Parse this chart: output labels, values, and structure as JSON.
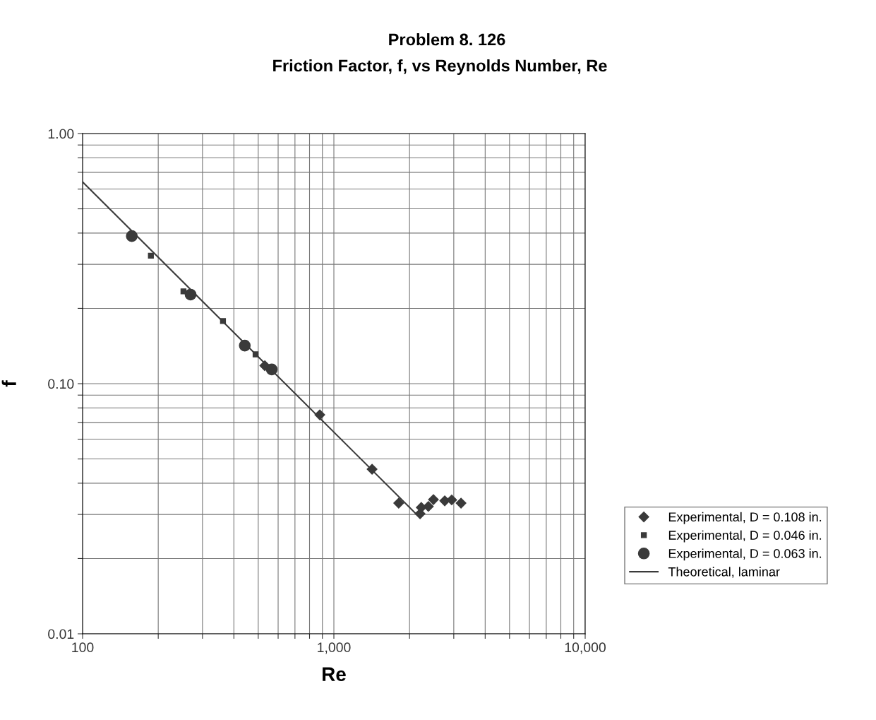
{
  "chart_data": {
    "type": "scatter",
    "title": "Problem 8. 126",
    "subtitle": "Friction Factor, f, vs Reynolds Number, Re",
    "xlabel": "Re",
    "ylabel": "f",
    "log": "xy",
    "xlim": [
      100,
      10000
    ],
    "ylim": [
      0.01,
      1.0
    ],
    "xticks": [
      {
        "value": 100,
        "label": "100"
      },
      {
        "value": 200,
        "label": null
      },
      {
        "value": 300,
        "label": null
      },
      {
        "value": 400,
        "label": null
      },
      {
        "value": 500,
        "label": null
      },
      {
        "value": 600,
        "label": null
      },
      {
        "value": 700,
        "label": null
      },
      {
        "value": 800,
        "label": null
      },
      {
        "value": 900,
        "label": null
      },
      {
        "value": 1000,
        "label": "1,000"
      },
      {
        "value": 2000,
        "label": null
      },
      {
        "value": 3000,
        "label": null
      },
      {
        "value": 4000,
        "label": null
      },
      {
        "value": 5000,
        "label": null
      },
      {
        "value": 6000,
        "label": null
      },
      {
        "value": 7000,
        "label": null
      },
      {
        "value": 8000,
        "label": null
      },
      {
        "value": 9000,
        "label": null
      },
      {
        "value": 10000,
        "label": "10,000"
      }
    ],
    "yticks": [
      {
        "value": 0.01,
        "label": "0.01"
      },
      {
        "value": 0.02,
        "label": null
      },
      {
        "value": 0.03,
        "label": null
      },
      {
        "value": 0.04,
        "label": null
      },
      {
        "value": 0.05,
        "label": null
      },
      {
        "value": 0.06,
        "label": null
      },
      {
        "value": 0.07,
        "label": null
      },
      {
        "value": 0.08,
        "label": null
      },
      {
        "value": 0.09,
        "label": null
      },
      {
        "value": 0.1,
        "label": "0.10"
      },
      {
        "value": 0.2,
        "label": null
      },
      {
        "value": 0.3,
        "label": null
      },
      {
        "value": 0.4,
        "label": null
      },
      {
        "value": 0.5,
        "label": null
      },
      {
        "value": 0.6,
        "label": null
      },
      {
        "value": 0.7,
        "label": null
      },
      {
        "value": 0.8,
        "label": null
      },
      {
        "value": 0.9,
        "label": null
      },
      {
        "value": 1.0,
        "label": "1.00"
      }
    ],
    "grid": true,
    "legend": "right",
    "series": [
      {
        "name": "Experimental, D = 0.108 in.",
        "marker": "diamond",
        "color": "#3a3a3a",
        "x": [
          531,
          879,
          1419,
          1811,
          2203,
          2227,
          2377,
          2490,
          2762,
          2944,
          3206
        ],
        "values": [
          0.118,
          0.0751,
          0.0455,
          0.0333,
          0.0302,
          0.032,
          0.0323,
          0.0344,
          0.034,
          0.0343,
          0.0333
        ]
      },
      {
        "name": "Experimental, D = 0.046 in.",
        "marker": "square",
        "color": "#3a3a3a",
        "x": [
          187,
          252,
          362,
          488
        ],
        "values": [
          0.325,
          0.234,
          0.178,
          0.131
        ]
      },
      {
        "name": "Experimental, D = 0.063 in.",
        "marker": "circle",
        "color": "#3a3a3a",
        "x": [
          157,
          269,
          442,
          566
        ],
        "values": [
          0.389,
          0.227,
          0.142,
          0.114
        ]
      },
      {
        "name": "Theoretical, laminar",
        "type": "line",
        "marker": "none",
        "line_style": "solid",
        "color": "#3a3a3a",
        "x": [
          100,
          2200
        ],
        "values": [
          0.64,
          0.0291
        ]
      }
    ]
  }
}
